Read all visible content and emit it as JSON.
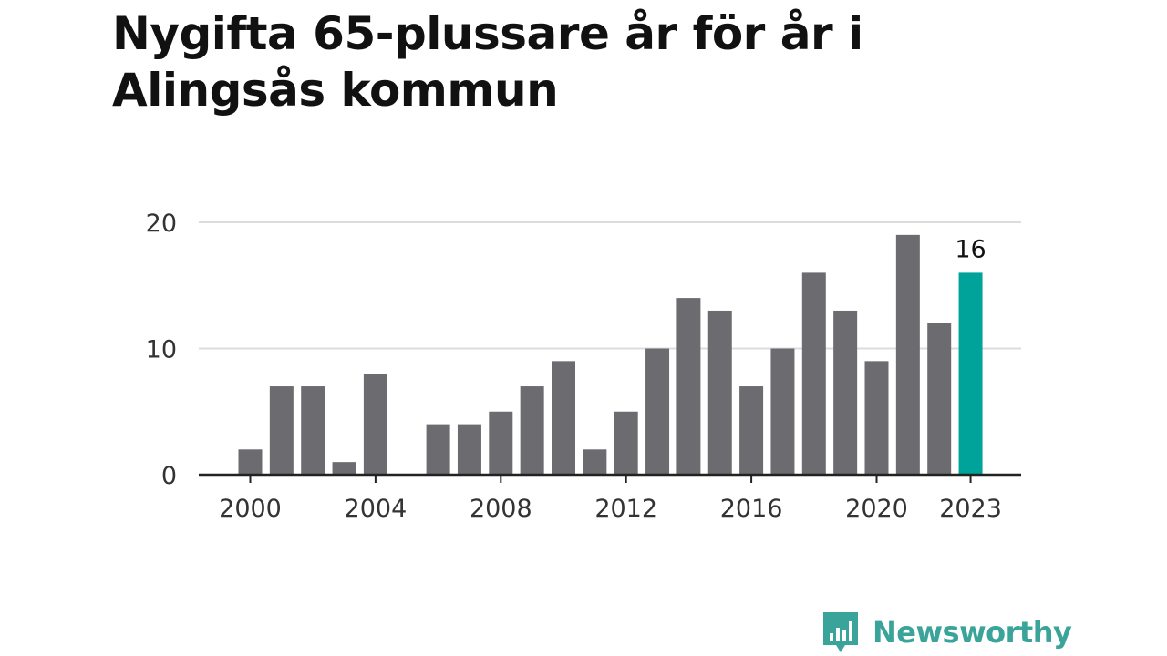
{
  "title": "Nygifta 65-plussare år för år i Alingsås kommun",
  "brand": {
    "name": "Newsworthy",
    "icon": "newsworthy-logo-icon",
    "color": "#3aa39a"
  },
  "chart_data": {
    "type": "bar",
    "title": "Nygifta 65-plussare år för år i Alingsås kommun",
    "xlabel": "",
    "ylabel": "",
    "categories": [
      2000,
      2001,
      2002,
      2003,
      2004,
      2005,
      2006,
      2007,
      2008,
      2009,
      2010,
      2011,
      2012,
      2013,
      2014,
      2015,
      2016,
      2017,
      2018,
      2019,
      2020,
      2021,
      2022,
      2023
    ],
    "values": [
      2,
      7,
      7,
      1,
      8,
      0,
      4,
      4,
      5,
      7,
      9,
      2,
      5,
      10,
      14,
      13,
      7,
      10,
      16,
      13,
      9,
      19,
      12,
      16
    ],
    "ylim": [
      0,
      20
    ],
    "yticks": [
      0,
      10,
      20
    ],
    "xticks": [
      2000,
      2004,
      2008,
      2012,
      2016,
      2020,
      2023
    ],
    "highlight": {
      "category": 2023,
      "label": "16",
      "color": "#00a39a"
    },
    "bar_color": "#6c6b70",
    "grid": true,
    "legend": "none"
  }
}
